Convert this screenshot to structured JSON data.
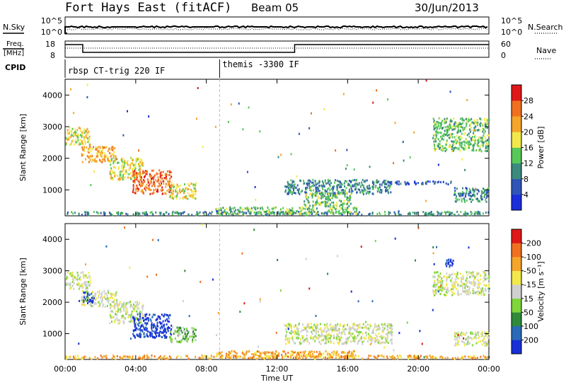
{
  "header": {
    "station": "Fort Hays East (fitACF)",
    "beam": "Beam 05",
    "date": "30/Jun/2013"
  },
  "top_panels": {
    "nsky": {
      "left_label": "N.Sky",
      "right_label": "N.Search",
      "left_ticks": [
        "10^5",
        "10^0"
      ],
      "right_ticks": [
        "10^5",
        "10^0"
      ]
    },
    "freq": {
      "left_label_1": "Freq.",
      "left_label_2": "[MHz]",
      "right_label": "Nave",
      "left_ticks": [
        "18",
        "8"
      ],
      "right_ticks": [
        "60",
        "0"
      ]
    },
    "cpid": {
      "label": "CPID",
      "segments": [
        {
          "start_hour": 0,
          "text": "rbsp CT-trig 220 IF"
        },
        {
          "start_hour": 8.75,
          "text": "themis -3300 IF"
        }
      ]
    }
  },
  "chart_data": [
    {
      "type": "heatmap",
      "title": "",
      "xlabel": "Time UT",
      "ylabel": "Slant Range [km]",
      "xlim": [
        0,
        24
      ],
      "ylim": [
        180,
        4500
      ],
      "x_ticks": [
        "00:00",
        "04:00",
        "08:00",
        "12:00",
        "16:00",
        "20:00",
        "00:00"
      ],
      "y_ticks": [
        1000,
        2000,
        3000,
        4000
      ],
      "colorbar": {
        "label": "Power [dB]",
        "ticks": [
          "4",
          "8",
          "12",
          "16",
          "20",
          "24",
          "28"
        ],
        "colors": [
          "#1a2edb",
          "#2f55b8",
          "#3c8a7d",
          "#58c85a",
          "#f2e84c",
          "#f5a52a",
          "#f07020",
          "#e01818"
        ]
      },
      "clusters": [
        {
          "t0": 0.0,
          "t1": 1.4,
          "r0": 2450,
          "r1": 3000,
          "level": 4
        },
        {
          "t0": 0.9,
          "t1": 2.9,
          "r0": 1900,
          "r1": 2400,
          "level": 5
        },
        {
          "t0": 2.5,
          "t1": 4.4,
          "r0": 1350,
          "r1": 2050,
          "level": 4
        },
        {
          "t0": 3.8,
          "t1": 6.0,
          "r0": 900,
          "r1": 1650,
          "level": 6
        },
        {
          "t0": 5.9,
          "t1": 7.4,
          "r0": 750,
          "r1": 1250,
          "level": 4
        },
        {
          "t0": 0.0,
          "t1": 24.0,
          "r0": 230,
          "r1": 340,
          "level": 2
        },
        {
          "t0": 8.5,
          "t1": 16.5,
          "r0": 260,
          "r1": 480,
          "level": 3
        },
        {
          "t0": 12.4,
          "t1": 18.5,
          "r0": 900,
          "r1": 1350,
          "level": 2
        },
        {
          "t0": 13.5,
          "t1": 16.2,
          "r0": 500,
          "r1": 950,
          "level": 3
        },
        {
          "t0": 18.0,
          "t1": 22.0,
          "r0": 1200,
          "r1": 1300,
          "level": 1
        },
        {
          "t0": 20.8,
          "t1": 24.0,
          "r0": 2250,
          "r1": 3300,
          "level": 3
        },
        {
          "t0": 22.0,
          "t1": 24.0,
          "r0": 650,
          "r1": 1100,
          "level": 2
        }
      ]
    },
    {
      "type": "heatmap",
      "title": "",
      "xlabel": "Time UT",
      "ylabel": "Slant Range [km]",
      "xlim": [
        0,
        24
      ],
      "ylim": [
        180,
        4500
      ],
      "x_ticks": [
        "00:00",
        "04:00",
        "08:00",
        "12:00",
        "16:00",
        "20:00",
        "00:00"
      ],
      "y_ticks": [
        1000,
        2000,
        3000,
        4000
      ],
      "colorbar": {
        "label": "Velocity [m s⁻¹]",
        "ticks": [
          "200",
          "100",
          "50",
          "15",
          "-15",
          "-50",
          "-100",
          "-200"
        ],
        "colors": [
          "#1830d8",
          "#2a6ab8",
          "#2f8a3a",
          "#7fd63a",
          "#cfcfcf",
          "#f2e84c",
          "#f5a52a",
          "#f07020",
          "#e01818"
        ]
      },
      "clusters": [
        {
          "t0": 0.0,
          "t1": 1.4,
          "r0": 2450,
          "r1": 3000,
          "level": 4
        },
        {
          "t0": 0.9,
          "t1": 2.9,
          "r0": 1900,
          "r1": 2400,
          "level": 4
        },
        {
          "t0": 1.0,
          "t1": 1.6,
          "r0": 2000,
          "r1": 2350,
          "level": 0
        },
        {
          "t0": 2.5,
          "t1": 4.4,
          "r0": 1350,
          "r1": 2050,
          "level": 4
        },
        {
          "t0": 3.8,
          "t1": 6.0,
          "r0": 900,
          "r1": 1650,
          "level": 0
        },
        {
          "t0": 5.9,
          "t1": 7.4,
          "r0": 750,
          "r1": 1250,
          "level": 3
        },
        {
          "t0": 0.0,
          "t1": 24.0,
          "r0": 230,
          "r1": 340,
          "level": 6
        },
        {
          "t0": 8.5,
          "t1": 16.5,
          "r0": 260,
          "r1": 480,
          "level": 6
        },
        {
          "t0": 12.4,
          "t1": 18.5,
          "r0": 700,
          "r1": 1350,
          "level": 4
        },
        {
          "t0": 21.4,
          "t1": 22.0,
          "r0": 3150,
          "r1": 3400,
          "level": 0
        },
        {
          "t0": 20.8,
          "t1": 24.0,
          "r0": 2250,
          "r1": 3000,
          "level": 4
        },
        {
          "t0": 22.0,
          "t1": 24.0,
          "r0": 650,
          "r1": 1100,
          "level": 4
        }
      ]
    }
  ]
}
